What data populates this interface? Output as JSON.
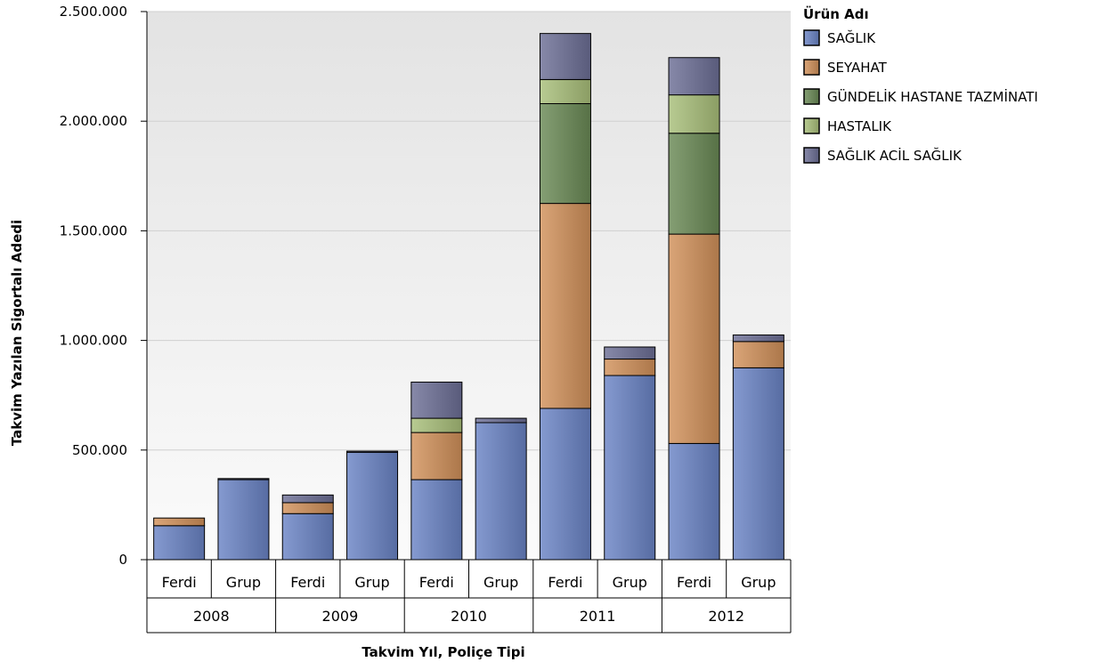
{
  "chart_data": {
    "type": "bar",
    "stacked": true,
    "xlabel": "Takvim Yıl, Poliçe Tipi",
    "ylabel": "Takvim Yazılan Sigortalı Adedi",
    "ylim": [
      0,
      2500000
    ],
    "yticks": [
      0,
      500000,
      1000000,
      1500000,
      2000000,
      2500000
    ],
    "ytick_labels": [
      "0",
      "500.000",
      "1.000.000",
      "1.500.000",
      "2.000.000",
      "2.500.000"
    ],
    "years": [
      "2008",
      "2009",
      "2010",
      "2011",
      "2012"
    ],
    "categories": [
      "Ferdi",
      "Grup",
      "Ferdi",
      "Grup",
      "Ferdi",
      "Grup",
      "Ferdi",
      "Grup",
      "Ferdi",
      "Grup"
    ],
    "legend_title": "Ürün Adı",
    "legend_position": "top-right",
    "grid": true,
    "series": [
      {
        "name": "SAĞLIK",
        "color": "#6a84c6",
        "values": [
          155000,
          365000,
          210000,
          490000,
          365000,
          625000,
          690000,
          840000,
          530000,
          875000
        ]
      },
      {
        "name": "SEYAHAT",
        "color": "#d2915a",
        "values": [
          35000,
          0,
          50000,
          0,
          215000,
          0,
          935000,
          75000,
          955000,
          120000
        ]
      },
      {
        "name": "GÜNDELİK HASTANE TAZMİNATI",
        "color": "#6a8a55",
        "values": [
          0,
          0,
          0,
          0,
          0,
          0,
          455000,
          0,
          460000,
          0
        ]
      },
      {
        "name": "HASTALIK",
        "color": "#a9bf7a",
        "values": [
          0,
          0,
          0,
          0,
          65000,
          0,
          110000,
          0,
          175000,
          0
        ]
      },
      {
        "name": "SAĞLIK ACİL SAĞLIK",
        "color": "#6d6f96",
        "values": [
          0,
          5000,
          35000,
          5000,
          165000,
          20000,
          210000,
          55000,
          170000,
          30000
        ]
      }
    ]
  }
}
